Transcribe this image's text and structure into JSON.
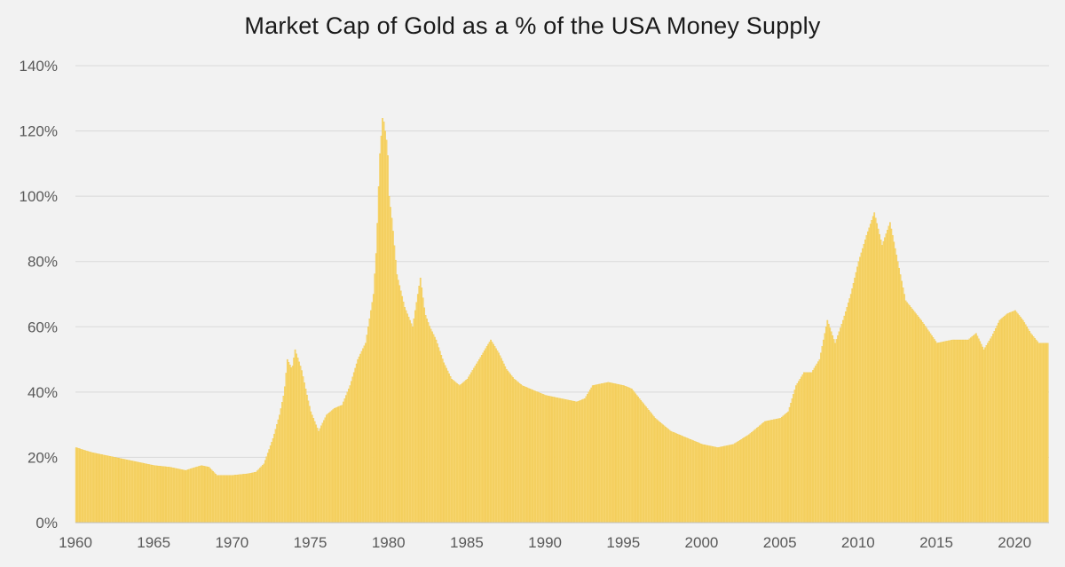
{
  "chart_data": {
    "type": "bar",
    "title": "Market Cap of Gold as a % of the USA Money Supply",
    "xlabel": "",
    "ylabel": "",
    "ylim": [
      0,
      140
    ],
    "y_ticks": [
      "0%",
      "20%",
      "40%",
      "60%",
      "80%",
      "100%",
      "120%",
      "140%"
    ],
    "x_ticks": [
      "1960",
      "1965",
      "1970",
      "1975",
      "1980",
      "1985",
      "1990",
      "1995",
      "2000",
      "2005",
      "2010",
      "2015",
      "2020"
    ],
    "grid": true,
    "legend": "none",
    "bar_color": "#f7d56e",
    "bar_edge_color": "#efc33a",
    "series": [
      {
        "x": [
          1960,
          1961,
          1962,
          1963,
          1964,
          1965,
          1966,
          1967,
          1968,
          1968.5,
          1969,
          1970,
          1971,
          1971.5,
          1972,
          1972.3,
          1972.6,
          1973,
          1973.3,
          1973.5,
          1973.8,
          1974,
          1974.4,
          1974.8,
          1975,
          1975.5,
          1976,
          1976.5,
          1977,
          1977.5,
          1978,
          1978.5,
          1979,
          1979.2,
          1979.4,
          1979.6,
          1979.9,
          1980,
          1980.2,
          1980.5,
          1981,
          1981.5,
          1982,
          1982.3,
          1982.6,
          1983,
          1983.5,
          1984,
          1984.5,
          1985,
          1986,
          1986.5,
          1987,
          1987.5,
          1988,
          1988.5,
          1989,
          1990,
          1991,
          1992,
          1992.5,
          1993,
          1994,
          1995,
          1995.5,
          1996,
          1997,
          1998,
          1999,
          2000,
          2001,
          2002,
          2003,
          2004,
          2005,
          2005.5,
          2006,
          2006.5,
          2007,
          2007.5,
          2008,
          2008.5,
          2009,
          2009.5,
          2010,
          2010.5,
          2011,
          2011.5,
          2012,
          2012.5,
          2013,
          2013.5,
          2014,
          2015,
          2016,
          2016.5,
          2017,
          2017.5,
          2018,
          2018.5,
          2019,
          2019.5,
          2020,
          2020.5,
          2021,
          2021.5,
          2022
        ],
        "values": [
          23,
          21.5,
          20.5,
          19.5,
          18.5,
          17.5,
          17,
          16,
          17.5,
          17,
          14.5,
          14.5,
          15,
          15.5,
          18,
          22,
          26,
          33,
          40,
          50,
          47,
          53,
          47,
          38,
          34,
          28,
          33,
          35,
          36,
          42,
          50,
          55,
          70,
          85,
          112,
          125,
          115,
          100,
          92,
          76,
          66,
          60,
          75,
          64,
          60,
          56,
          49,
          44,
          42,
          44,
          52,
          56,
          52,
          47,
          44,
          42,
          41,
          39,
          38,
          37,
          38,
          42,
          43,
          42,
          41,
          38,
          32,
          28,
          26,
          24,
          23,
          24,
          27,
          31,
          32,
          34,
          42,
          46,
          46,
          50,
          62,
          55,
          62,
          70,
          80,
          88,
          95,
          85,
          92,
          80,
          68,
          65,
          62,
          55,
          56,
          56,
          56,
          58,
          53,
          57,
          62,
          64,
          65,
          62,
          58,
          55,
          55
        ]
      }
    ]
  }
}
